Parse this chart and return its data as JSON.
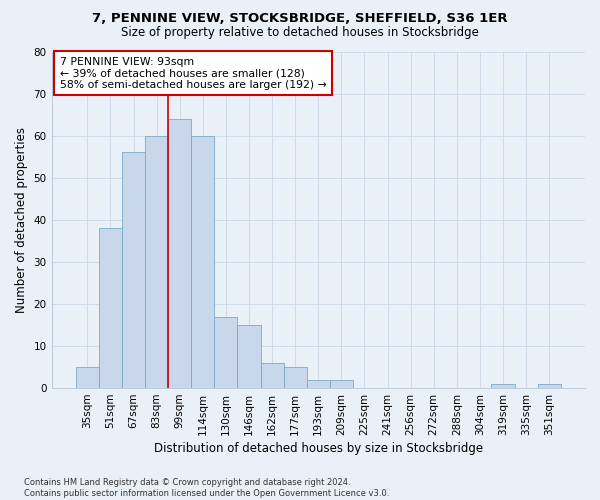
{
  "title1": "7, PENNINE VIEW, STOCKSBRIDGE, SHEFFIELD, S36 1ER",
  "title2": "Size of property relative to detached houses in Stocksbridge",
  "xlabel": "Distribution of detached houses by size in Stocksbridge",
  "ylabel": "Number of detached properties",
  "categories": [
    "35sqm",
    "51sqm",
    "67sqm",
    "83sqm",
    "99sqm",
    "114sqm",
    "130sqm",
    "146sqm",
    "162sqm",
    "177sqm",
    "193sqm",
    "209sqm",
    "225sqm",
    "241sqm",
    "256sqm",
    "272sqm",
    "288sqm",
    "304sqm",
    "319sqm",
    "335sqm",
    "351sqm"
  ],
  "values": [
    5,
    38,
    56,
    60,
    64,
    60,
    17,
    15,
    6,
    5,
    2,
    2,
    0,
    0,
    0,
    0,
    0,
    0,
    1,
    0,
    1
  ],
  "bar_color": "#c8d8ea",
  "bar_edge_color": "#7aaac8",
  "vline_color": "#cc0000",
  "vline_pos": 3.5,
  "ylim": [
    0,
    80
  ],
  "yticks": [
    0,
    10,
    20,
    30,
    40,
    50,
    60,
    70,
    80
  ],
  "annotation_line1": "7 PENNINE VIEW: 93sqm",
  "annotation_line2": "← 39% of detached houses are smaller (128)",
  "annotation_line3": "58% of semi-detached houses are larger (192) →",
  "annotation_box_facecolor": "#ffffff",
  "annotation_box_edgecolor": "#cc0000",
  "footer": "Contains HM Land Registry data © Crown copyright and database right 2024.\nContains public sector information licensed under the Open Government Licence v3.0.",
  "bg_color": "#eaf0f8",
  "grid_color": "#d0d8e8",
  "title1_fontsize": 9.5,
  "title2_fontsize": 8.5
}
